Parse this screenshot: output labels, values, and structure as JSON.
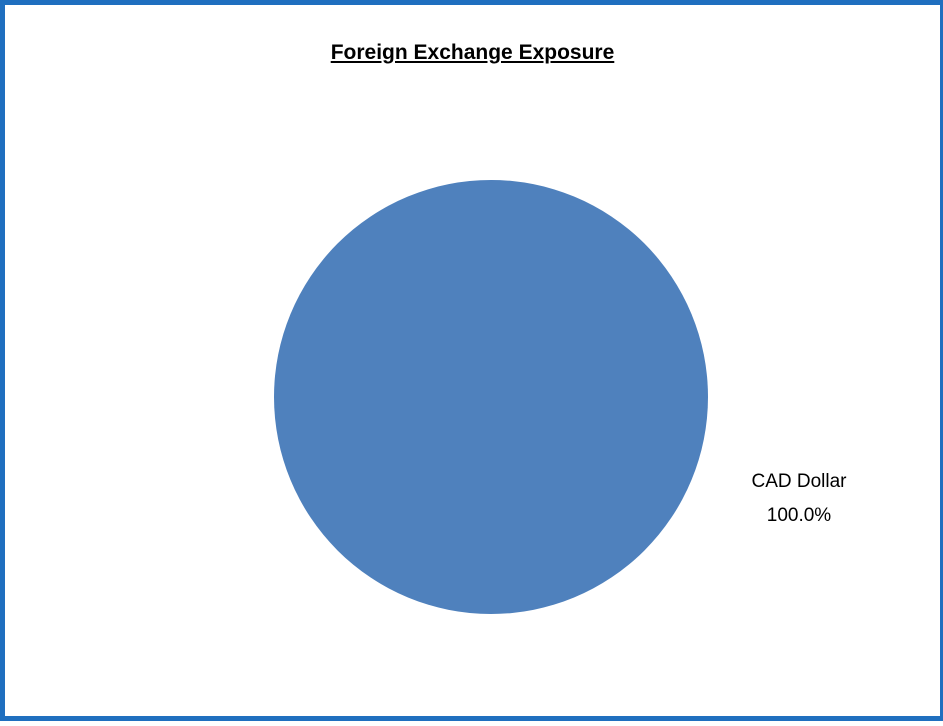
{
  "chart_data": {
    "type": "pie",
    "title": "Foreign Exchange Exposure",
    "categories": [
      "CAD Dollar"
    ],
    "values": [
      100.0
    ],
    "data_labels": [
      "100.0%"
    ],
    "colors": [
      "#4f81bd"
    ],
    "legend": "none"
  },
  "colors": {
    "border": "#1f6fbf",
    "background": "#ffffff"
  }
}
